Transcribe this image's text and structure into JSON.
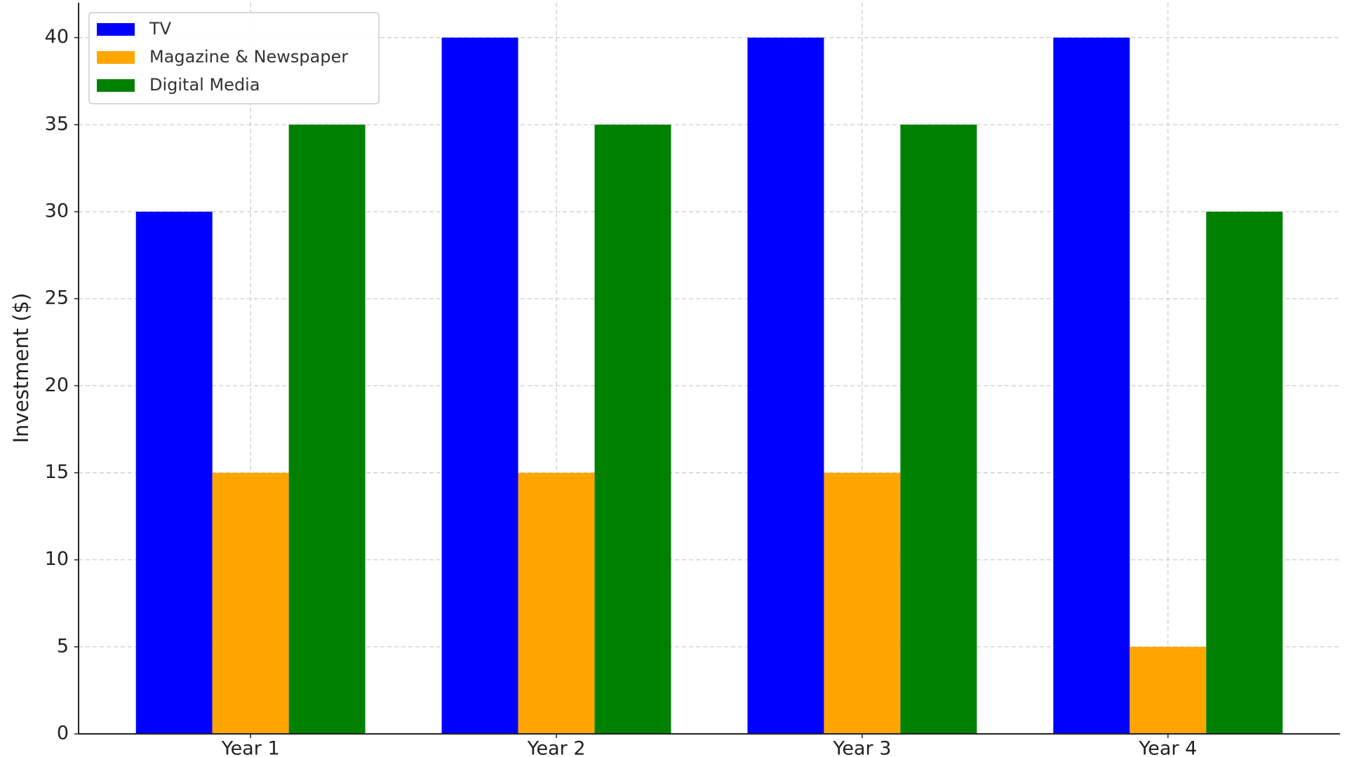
{
  "chart_data": {
    "type": "bar",
    "y_label": "Investment ($)",
    "categories": [
      "Year 1",
      "Year 2",
      "Year 3",
      "Year 4"
    ],
    "series": [
      {
        "name": "TV",
        "color": "#0000ff",
        "values": [
          30,
          40,
          40,
          40
        ]
      },
      {
        "name": "Magazine & Newspaper",
        "color": "#ffa500",
        "values": [
          15,
          15,
          15,
          5
        ]
      },
      {
        "name": "Digital Media",
        "color": "#008000",
        "values": [
          35,
          35,
          35,
          30
        ]
      }
    ],
    "ylim": [
      0,
      42
    ],
    "yticks": [
      0,
      5,
      10,
      15,
      20,
      25,
      30,
      35,
      40
    ],
    "grid": true,
    "legend": "upper-left"
  }
}
